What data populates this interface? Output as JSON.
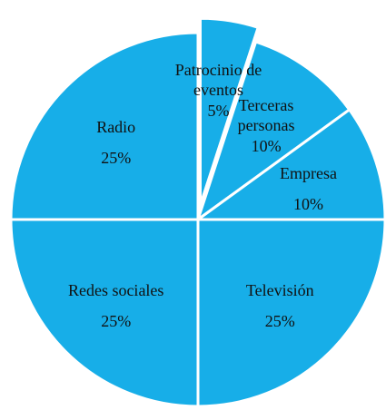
{
  "chart_data": {
    "type": "pie",
    "categories": [
      "Patrocinio de eventos",
      "Terceras personas",
      "Empresa",
      "Televisión",
      "Redes sociales",
      "Radio"
    ],
    "values": [
      5,
      10,
      10,
      25,
      25,
      25
    ],
    "value_labels": [
      "5%",
      "10%",
      "10%",
      "25%",
      "25%",
      "25%"
    ],
    "color": "#17aee8",
    "exploded": [
      "Patrocinio de eventos"
    ]
  }
}
